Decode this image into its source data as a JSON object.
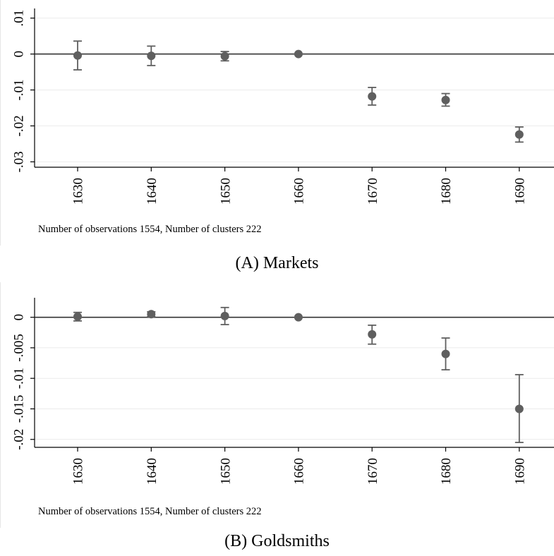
{
  "chart_data": [
    {
      "type": "scatter",
      "style": "coefficient plot with 95% confidence interval error bars",
      "categories": [
        "1630",
        "1640",
        "1650",
        "1660",
        "1670",
        "1680",
        "1690"
      ],
      "x": [
        1630,
        1640,
        1650,
        1660,
        1670,
        1680,
        1690
      ],
      "values": [
        -0.0004,
        -0.0005,
        -0.0006,
        0.0,
        -0.0118,
        -0.0128,
        -0.0224
      ],
      "ci_low": [
        -0.0044,
        -0.0032,
        -0.0019,
        0.0,
        -0.0142,
        -0.0145,
        -0.0245
      ],
      "ci_high": [
        0.0036,
        0.0022,
        0.0007,
        0.0,
        -0.0093,
        -0.011,
        -0.0203
      ],
      "yticks": [
        ".01",
        "0",
        "-.01",
        "-.02",
        "-.03"
      ],
      "ytick_values": [
        0.01,
        0.0,
        -0.01,
        -0.02,
        -0.03
      ],
      "ylim": [
        -0.0315,
        0.0115
      ],
      "reference_line": 0,
      "grid": true,
      "note": "Number of observations 1554, Number of clusters 222",
      "caption": "(A) Markets",
      "marker_color": "#5f5f5f"
    },
    {
      "type": "scatter",
      "style": "coefficient plot with 95% confidence interval error bars",
      "categories": [
        "1630",
        "1640",
        "1650",
        "1660",
        "1670",
        "1680",
        "1690"
      ],
      "x": [
        1630,
        1640,
        1650,
        1660,
        1670,
        1680,
        1690
      ],
      "values": [
        0.0001,
        0.0005,
        0.0002,
        0.0,
        -0.0028,
        -0.006,
        -0.015
      ],
      "ci_low": [
        -0.0006,
        0.0001,
        -0.0012,
        0.0,
        -0.0044,
        -0.0086,
        -0.0205
      ],
      "ci_high": [
        0.0008,
        0.0009,
        0.0016,
        0.0,
        -0.0013,
        -0.0034,
        -0.0094
      ],
      "yticks": [
        "0",
        "-.005",
        "-.01",
        "-.015",
        "-.02"
      ],
      "ytick_values": [
        0.0,
        -0.005,
        -0.01,
        -0.015,
        -0.02
      ],
      "ylim": [
        -0.0213,
        0.0025
      ],
      "reference_line": 0,
      "grid": true,
      "note": "Number of observations 1554, Number of clusters 222",
      "caption": "(B) Goldsmiths",
      "marker_color": "#5f5f5f"
    }
  ]
}
